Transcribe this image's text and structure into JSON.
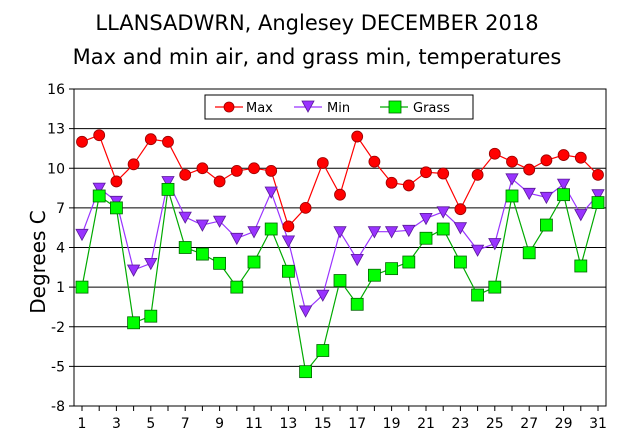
{
  "chart_data": {
    "type": "line",
    "title": "LLANSADWRN, Anglesey DECEMBER 2018",
    "subtitle": "Max and min air, and grass min, temperatures",
    "ylabel": "Degrees C",
    "xlabel": "",
    "ylim": [
      -8,
      16
    ],
    "yticks": [
      -8,
      -5,
      -2,
      1,
      4,
      7,
      10,
      13,
      16
    ],
    "xlim": [
      1,
      31
    ],
    "xticks": [
      1,
      3,
      5,
      7,
      9,
      11,
      13,
      15,
      17,
      19,
      21,
      23,
      25,
      27,
      29,
      31
    ],
    "grid": "horizontal",
    "legend_position": "top-center",
    "x": [
      1,
      2,
      3,
      4,
      5,
      6,
      7,
      8,
      9,
      10,
      11,
      12,
      13,
      14,
      15,
      16,
      17,
      18,
      19,
      20,
      21,
      22,
      23,
      24,
      25,
      26,
      27,
      28,
      29,
      30,
      31
    ],
    "series": [
      {
        "name": "Max",
        "color": "#ff0000",
        "line_color": "#ff0000",
        "marker": "circle",
        "values": [
          12.0,
          12.5,
          9.0,
          10.3,
          12.2,
          12.0,
          9.5,
          10.0,
          9.0,
          9.8,
          10.0,
          9.8,
          5.6,
          7.0,
          10.4,
          8.0,
          12.4,
          10.5,
          8.9,
          8.7,
          9.7,
          9.6,
          6.9,
          9.5,
          11.1,
          10.5,
          9.9,
          10.6,
          11.0,
          10.8,
          9.5
        ]
      },
      {
        "name": "Min",
        "color": "#9933ff",
        "line_color": "#9933ff",
        "marker": "triangle-down",
        "values": [
          5.0,
          8.5,
          7.5,
          2.3,
          2.8,
          9.0,
          6.3,
          5.7,
          6.0,
          4.7,
          5.2,
          8.2,
          4.5,
          -0.8,
          0.4,
          5.2,
          3.1,
          5.2,
          5.2,
          5.3,
          6.2,
          6.7,
          5.5,
          3.8,
          4.3,
          9.2,
          8.1,
          7.8,
          8.8,
          6.5,
          8.0
        ]
      },
      {
        "name": "Grass",
        "color": "#00ff00",
        "line_color": "#00aa00",
        "marker": "square",
        "values": [
          1.0,
          7.9,
          7.0,
          -1.7,
          -1.2,
          8.4,
          4.0,
          3.5,
          2.8,
          1.0,
          2.9,
          5.4,
          2.2,
          -5.4,
          -3.8,
          1.5,
          -0.3,
          1.9,
          2.4,
          2.9,
          4.7,
          5.4,
          2.9,
          0.4,
          1.0,
          7.9,
          3.6,
          5.7,
          8.0,
          2.6,
          7.4
        ]
      }
    ]
  }
}
